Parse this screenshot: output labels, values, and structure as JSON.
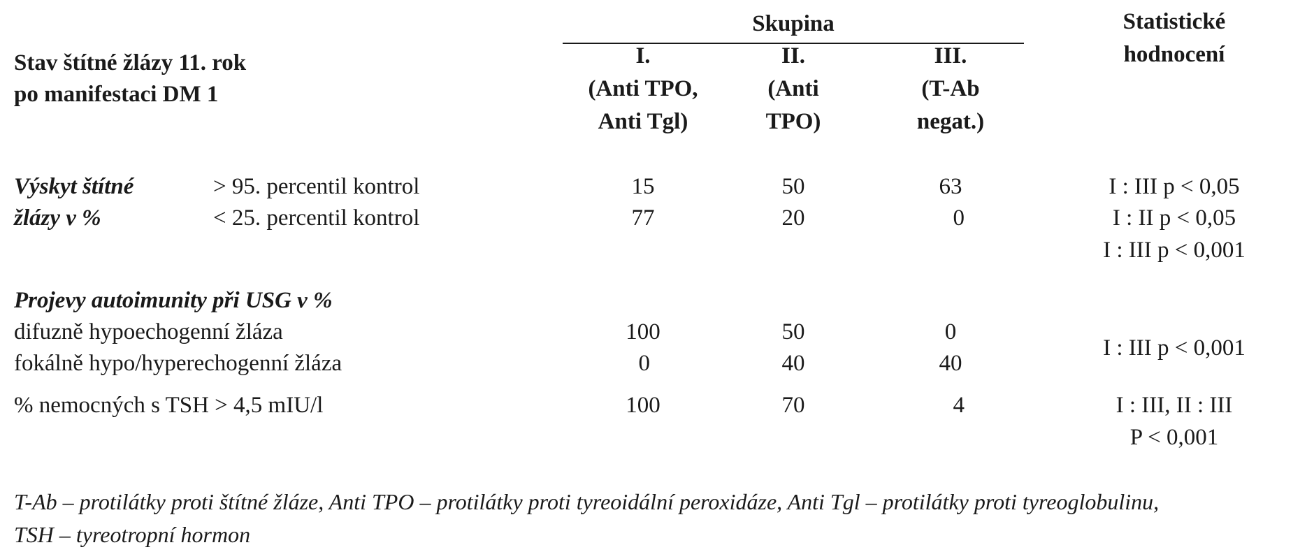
{
  "header": {
    "group_heading": "Skupina",
    "stat_heading_line1": "Statistické",
    "stat_heading_line2": "hodnocení",
    "row_heading_line1": "Stav štítné žlázy 11. rok",
    "row_heading_line2": "po manifestaci DM 1",
    "groups": [
      {
        "numeral": "I.",
        "line2": "(Anti TPO,",
        "line3": "Anti Tgl)"
      },
      {
        "numeral": "II.",
        "line2": "(Anti",
        "line3": "TPO)"
      },
      {
        "numeral": "III.",
        "line2": "(T-Ab",
        "line3": "negat.)"
      }
    ]
  },
  "section1": {
    "label_line1": "Výskyt štítné",
    "label_line2": "žlázy v %",
    "rows": [
      {
        "label": "> 95. percentil kontrol",
        "values": [
          "15",
          "50",
          "63"
        ],
        "stat": "I : III p < 0,05"
      },
      {
        "label": "< 25. percentil kontrol",
        "values": [
          "77",
          "20",
          "0"
        ],
        "stat": "I : II p < 0,05"
      }
    ],
    "extra_stat": "I : III p < 0,001"
  },
  "section2": {
    "heading": "Projevy autoimunity při USG v %",
    "rows": [
      {
        "label": "difuzně hypoechogenní žláza",
        "values": [
          "100",
          "50",
          "0"
        ]
      },
      {
        "label": "fokálně hypo/hyperechogenní žláza",
        "values": [
          "0",
          "40",
          "40"
        ]
      }
    ],
    "stat": "I : III p < 0,001"
  },
  "section3": {
    "label": "% nemocných s TSH > 4,5 mIU/l",
    "values": [
      "100",
      "70",
      "4"
    ],
    "stat_line1": "I : III, II : III",
    "stat_line2": "P < 0,001"
  },
  "footnote": {
    "line1": "T-Ab – protilátky proti štítné žláze, Anti TPO – protilátky proti tyreoidální peroxidáze, Anti Tgl – protilátky proti tyreoglobulinu,",
    "line2": "TSH – tyreotropní hormon"
  }
}
